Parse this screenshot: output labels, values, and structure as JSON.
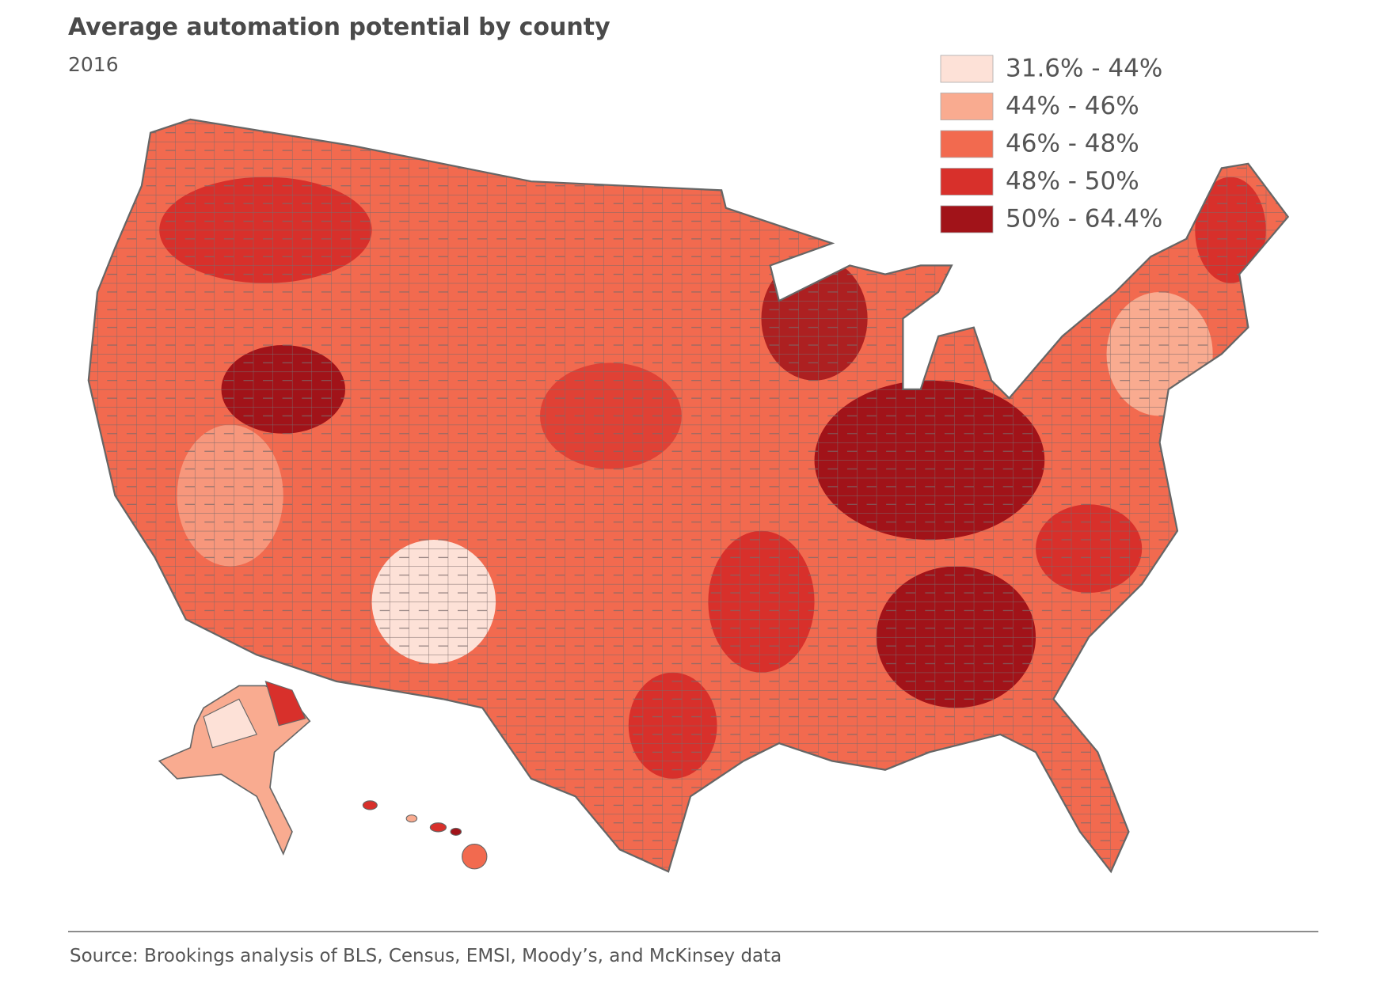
{
  "header": {
    "title": "Average automation potential by county",
    "subtitle": "2016"
  },
  "legend": {
    "items": [
      {
        "label": "31.6% - 44%",
        "color": "#fde1d7"
      },
      {
        "label": "44% - 46%",
        "color": "#f9ab90"
      },
      {
        "label": "46% - 48%",
        "color": "#f26a4f"
      },
      {
        "label": "48% - 50%",
        "color": "#d8302b"
      },
      {
        "label": "50% - 64.4%",
        "color": "#a11319"
      }
    ]
  },
  "footer": {
    "source": "Source: Brookings analysis of BLS, Census, EMSI, Moody’s, and McKinsey data"
  }
}
